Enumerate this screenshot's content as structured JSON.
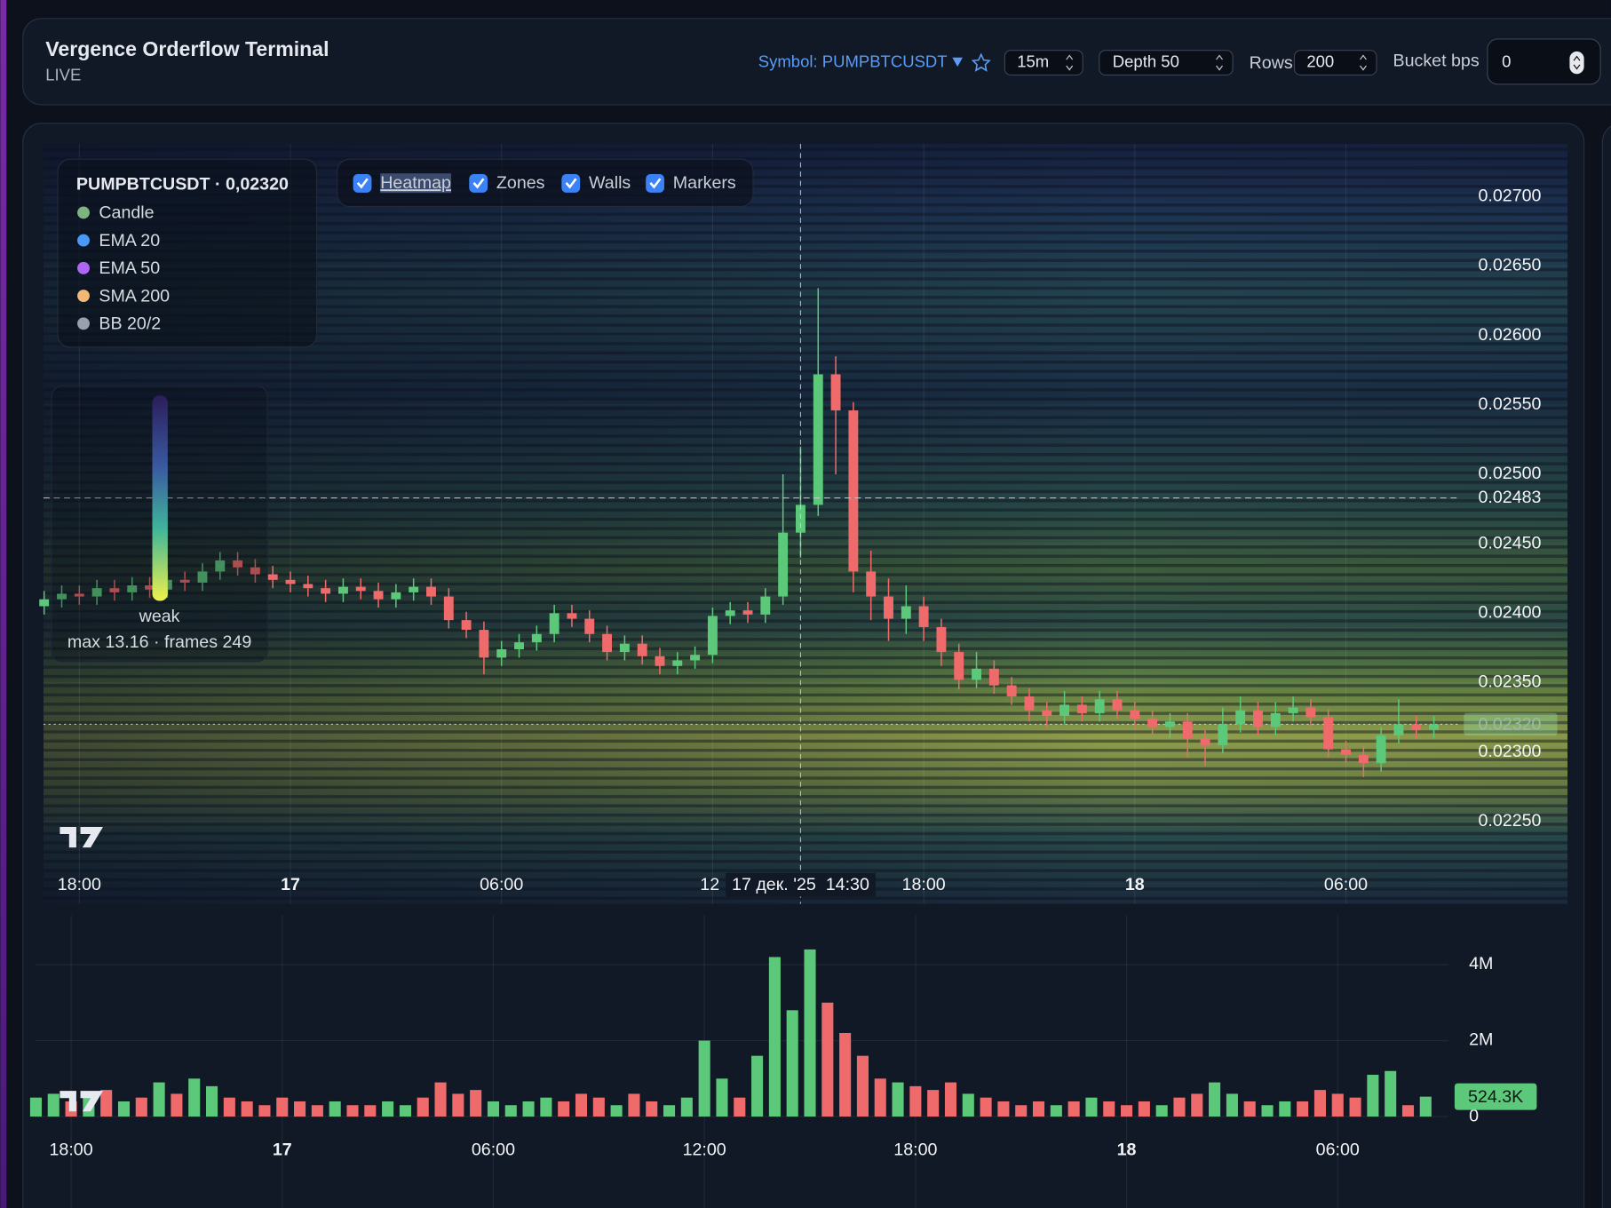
{
  "header": {
    "title": "Vergence Orderflow Terminal",
    "status": "LIVE",
    "symbol": "Symbol: PUMPBTCUSDT",
    "interval": "15m",
    "depth": "Depth 50",
    "rows_label": "Rows",
    "rows": "200",
    "bucket_label": "Bucket bps",
    "bucket": "0"
  },
  "toggles": [
    {
      "label": "Heatmap",
      "checked": true
    },
    {
      "label": "Zones",
      "checked": true
    },
    {
      "label": "Walls",
      "checked": true
    },
    {
      "label": "Markers",
      "checked": true
    }
  ],
  "legend": {
    "title": "PUMPBTCUSDT · 0,02320",
    "items": [
      {
        "name": "Candle",
        "color": "#7fb47c"
      },
      {
        "name": "EMA 20",
        "color": "#4a9af5"
      },
      {
        "name": "EMA 50",
        "color": "#b066f5"
      },
      {
        "name": "SMA 200",
        "color": "#f3b877"
      },
      {
        "name": "BB 20/2",
        "color": "#9aa0ad"
      }
    ]
  },
  "intensity": {
    "low_label": "weak",
    "stats": "max 13.16 · frames 249"
  },
  "chart_data": {
    "type": "candlestick",
    "up_color": "#5cc97a",
    "down_color": "#ef6b6b",
    "x": [
      -1,
      -0.5,
      0,
      0.5,
      1,
      1.5,
      2,
      2.5,
      3,
      3.5,
      4,
      4.5,
      5,
      5.5,
      6,
      6.5,
      7,
      7.5,
      8,
      8.5,
      9,
      9.5,
      10,
      10.5,
      11,
      11.5,
      12,
      12.5,
      13,
      13.5,
      14,
      14.5,
      15,
      15.5,
      16,
      16.5,
      17,
      17.5,
      18,
      18.5,
      19,
      19.5,
      20,
      20.5,
      21,
      21.5,
      22,
      22.5,
      23,
      23.5,
      24,
      24.5,
      25,
      25.5,
      26,
      26.5,
      27,
      27.5,
      28,
      28.5,
      29,
      29.5,
      30,
      30.5,
      31,
      31.5,
      32,
      32.5,
      33,
      33.5,
      34,
      34.5,
      35,
      35.5,
      36,
      36.5,
      37,
      37.5,
      38,
      38.5
    ],
    "open": [
      0.02405,
      0.0241,
      0.02414,
      0.02412,
      0.02418,
      0.02415,
      0.0242,
      0.02417,
      0.02424,
      0.02422,
      0.0243,
      0.02438,
      0.02433,
      0.02428,
      0.02424,
      0.02421,
      0.02418,
      0.02414,
      0.02419,
      0.02416,
      0.0241,
      0.02415,
      0.02419,
      0.02412,
      0.02395,
      0.02388,
      0.02368,
      0.02374,
      0.02379,
      0.02385,
      0.024,
      0.02396,
      0.02385,
      0.02372,
      0.02378,
      0.02369,
      0.02362,
      0.02366,
      0.0237,
      0.02398,
      0.02402,
      0.02399,
      0.02412,
      0.02458,
      0.02478,
      0.02572,
      0.02546,
      0.0243,
      0.02412,
      0.02396,
      0.02405,
      0.0239,
      0.02372,
      0.02352,
      0.0236,
      0.02348,
      0.0234,
      0.0233,
      0.02326,
      0.02334,
      0.02328,
      0.02338,
      0.0233,
      0.02324,
      0.02318,
      0.02322,
      0.0231,
      0.02305,
      0.0232,
      0.0233,
      0.02318,
      0.02328,
      0.02332,
      0.02325,
      0.02302,
      0.02298,
      0.02292,
      0.02312,
      0.0232,
      0.02316
    ],
    "high": [
      0.02416,
      0.0242,
      0.0242,
      0.02424,
      0.02424,
      0.02426,
      0.02426,
      0.0243,
      0.0243,
      0.02436,
      0.02444,
      0.02444,
      0.02439,
      0.02434,
      0.0243,
      0.02427,
      0.02424,
      0.02425,
      0.02425,
      0.02422,
      0.02421,
      0.02425,
      0.02425,
      0.02418,
      0.02401,
      0.02394,
      0.0238,
      0.02385,
      0.02391,
      0.02406,
      0.02406,
      0.02402,
      0.02391,
      0.02384,
      0.02384,
      0.02375,
      0.02372,
      0.02376,
      0.02404,
      0.02408,
      0.02408,
      0.02418,
      0.025,
      0.0252,
      0.02634,
      0.02585,
      0.02552,
      0.02445,
      0.02425,
      0.0242,
      0.02412,
      0.02396,
      0.02378,
      0.02372,
      0.02366,
      0.02354,
      0.02346,
      0.02336,
      0.02344,
      0.0234,
      0.02344,
      0.02344,
      0.02336,
      0.0233,
      0.02328,
      0.02328,
      0.02316,
      0.02332,
      0.0234,
      0.02336,
      0.02336,
      0.0234,
      0.02338,
      0.02331,
      0.02308,
      0.02304,
      0.02318,
      0.02338,
      0.02326,
      0.02326
    ],
    "low": [
      0.02399,
      0.02404,
      0.02406,
      0.02406,
      0.02409,
      0.02409,
      0.02411,
      0.02411,
      0.02416,
      0.02416,
      0.02424,
      0.02427,
      0.02422,
      0.02418,
      0.02415,
      0.02412,
      0.02408,
      0.02408,
      0.0241,
      0.02404,
      0.02404,
      0.02409,
      0.02406,
      0.02389,
      0.02382,
      0.02356,
      0.02362,
      0.02368,
      0.02373,
      0.02379,
      0.0239,
      0.02379,
      0.02366,
      0.02366,
      0.02363,
      0.02356,
      0.02356,
      0.0236,
      0.02364,
      0.02392,
      0.02393,
      0.02393,
      0.02406,
      0.0244,
      0.0247,
      0.025,
      0.02415,
      0.02395,
      0.0238,
      0.02385,
      0.0238,
      0.02362,
      0.02345,
      0.02346,
      0.02342,
      0.02334,
      0.02322,
      0.02318,
      0.0232,
      0.02322,
      0.02322,
      0.02324,
      0.02316,
      0.02312,
      0.0231,
      0.02296,
      0.0229,
      0.02299,
      0.02314,
      0.02312,
      0.02312,
      0.02322,
      0.02319,
      0.02296,
      0.02292,
      0.02282,
      0.02286,
      0.02306,
      0.0231,
      0.0231
    ],
    "close": [
      0.0241,
      0.02414,
      0.02412,
      0.02418,
      0.02415,
      0.0242,
      0.02417,
      0.02424,
      0.02422,
      0.0243,
      0.02438,
      0.02433,
      0.02428,
      0.02424,
      0.02421,
      0.02418,
      0.02414,
      0.02419,
      0.02416,
      0.0241,
      0.02415,
      0.02419,
      0.02412,
      0.02395,
      0.02388,
      0.02368,
      0.02374,
      0.02379,
      0.02385,
      0.024,
      0.02396,
      0.02385,
      0.02372,
      0.02378,
      0.02369,
      0.02362,
      0.02366,
      0.0237,
      0.02398,
      0.02402,
      0.02399,
      0.02412,
      0.02458,
      0.02478,
      0.02572,
      0.02546,
      0.0243,
      0.02412,
      0.02396,
      0.02405,
      0.0239,
      0.02372,
      0.02352,
      0.0236,
      0.02348,
      0.0234,
      0.0233,
      0.02326,
      0.02334,
      0.02328,
      0.02338,
      0.0233,
      0.02324,
      0.02318,
      0.02322,
      0.0231,
      0.02305,
      0.0232,
      0.0233,
      0.02318,
      0.02328,
      0.02332,
      0.02325,
      0.02302,
      0.02298,
      0.02292,
      0.02312,
      0.0232,
      0.02316,
      0.0232
    ],
    "xlim": [
      -1.02,
      42.3
    ],
    "xticks": [
      {
        "value": 0,
        "label": "18:00"
      },
      {
        "value": 6,
        "label": "17"
      },
      {
        "value": 12,
        "label": "06:00"
      },
      {
        "value": 18,
        "label": "12"
      },
      {
        "value": 24,
        "label": "18:00"
      },
      {
        "value": 30,
        "label": "18"
      },
      {
        "value": 36,
        "label": "06:00"
      }
    ],
    "ylim": [
      0.02198,
      0.02738
    ],
    "yticks": [
      {
        "value": 0.0225,
        "label": "0.02250"
      },
      {
        "value": 0.023,
        "label": "0.02300"
      },
      {
        "value": 0.0235,
        "label": "0.02350"
      },
      {
        "value": 0.024,
        "label": "0.02400"
      },
      {
        "value": 0.0245,
        "label": "0.02450"
      },
      {
        "value": 0.025,
        "label": "0.02500"
      },
      {
        "value": 0.0255,
        "label": "0.02550"
      },
      {
        "value": 0.026,
        "label": "0.02600"
      },
      {
        "value": 0.0265,
        "label": "0.02650"
      },
      {
        "value": 0.027,
        "label": "0.02700"
      }
    ],
    "last_price": {
      "value": 0.0232,
      "label": "0.02320"
    },
    "crosshair": {
      "x": 20.5,
      "x_label": "17 дек. '25  14:30",
      "y": 0.02483,
      "y_label": "0.02483"
    },
    "volume": {
      "values": [
        500000,
        600000,
        400000,
        500000,
        700000,
        400000,
        500000,
        900000,
        600000,
        1000000,
        800000,
        500000,
        400000,
        300000,
        500000,
        400000,
        300000,
        400000,
        300000,
        300000,
        400000,
        300000,
        500000,
        900000,
        600000,
        700000,
        400000,
        300000,
        400000,
        500000,
        400000,
        600000,
        500000,
        300000,
        600000,
        400000,
        300000,
        500000,
        2000000,
        1000000,
        500000,
        1600000,
        4200000,
        2800000,
        4400000,
        3000000,
        2200000,
        1600000,
        1000000,
        900000,
        800000,
        700000,
        900000,
        600000,
        500000,
        400000,
        300000,
        400000,
        300000,
        400000,
        500000,
        400000,
        300000,
        400000,
        300000,
        500000,
        600000,
        900000,
        600000,
        400000,
        300000,
        400000,
        400000,
        700000,
        600000,
        500000,
        1100000,
        1200000,
        300000,
        524300
      ],
      "ylim": [
        0,
        5300000
      ],
      "yticks": [
        0,
        {
          "value": 2000000,
          "label": "2M"
        },
        {
          "value": 4000000,
          "label": "4M"
        }
      ],
      "xticks": [
        {
          "value": 0,
          "label": "18:00"
        },
        {
          "value": 6,
          "label": "17"
        },
        {
          "value": 12,
          "label": "06:00"
        },
        {
          "value": 18,
          "label": "12:00"
        },
        {
          "value": 24,
          "label": "18:00"
        },
        {
          "value": 30,
          "label": "18"
        },
        {
          "value": 36,
          "label": "06:00"
        }
      ],
      "last_value": {
        "value": 524300,
        "label": "524.3K"
      }
    }
  }
}
